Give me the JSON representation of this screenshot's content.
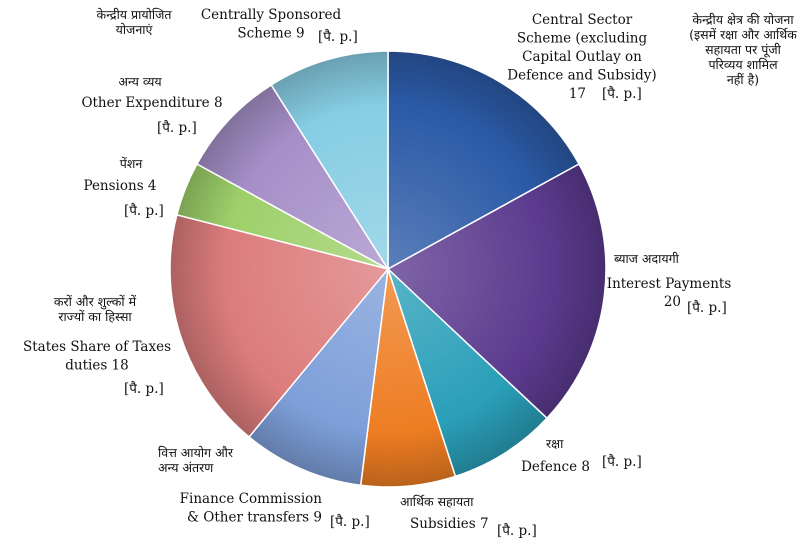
{
  "chart_data": {
    "type": "pie",
    "title": "",
    "unit": "[पै. p.]",
    "slices": [
      {
        "hindi": [
          "केन्द्रीय क्षेत्र की योजना",
          "(इसमें रक्षा और आर्थिक",
          "सहायता पर पूंजी",
          "परिव्यय शामिल",
          "नहीं है)"
        ],
        "english": [
          "Central Sector",
          "Scheme (excluding",
          "Capital Outlay on",
          "Defence and Subsidy)"
        ],
        "value_text": "17",
        "value": 17,
        "color": "#2b5aa6"
      },
      {
        "hindi": [
          "ब्याज अदायगी"
        ],
        "english": [
          "Interest Payments"
        ],
        "value_text": "20",
        "value": 20,
        "color": "#5b3a8e"
      },
      {
        "hindi": [
          "रक्षा"
        ],
        "english": [
          "Defence 8"
        ],
        "value_text": "",
        "value": 8,
        "color": "#2a9fb8"
      },
      {
        "hindi": [
          "आर्थिक सहायता"
        ],
        "english": [
          "Subsidies 7"
        ],
        "value_text": "",
        "value": 7,
        "color": "#ee7d23"
      },
      {
        "hindi": [
          "वित्त आयोग और",
          "अन्य अंतरण"
        ],
        "english": [
          "Finance Commission",
          "& Other transfers 9"
        ],
        "value_text": "",
        "value": 9,
        "color": "#7d9fd9"
      },
      {
        "hindi": [
          "करों और शुल्कों में",
          "राज्यों का हिस्सा"
        ],
        "english": [
          "States Share of Taxes",
          "duties 18"
        ],
        "value_text": "",
        "value": 18,
        "color": "#dc7c7c"
      },
      {
        "hindi": [
          "पेंशन"
        ],
        "english": [
          "Pensions 4"
        ],
        "value_text": "",
        "value": 4,
        "color": "#9ed06a"
      },
      {
        "hindi": [
          "अन्य व्यय"
        ],
        "english": [
          "Other Expenditure 8"
        ],
        "value_text": "",
        "value": 8,
        "color": "#a68fc8"
      },
      {
        "hindi": [
          "केन्द्रीय प्रायोजित",
          "योजनाएं"
        ],
        "english": [
          "Centrally Sponsored",
          "Scheme 9"
        ],
        "value_text": "",
        "value": 9,
        "color": "#86cde3"
      }
    ]
  }
}
